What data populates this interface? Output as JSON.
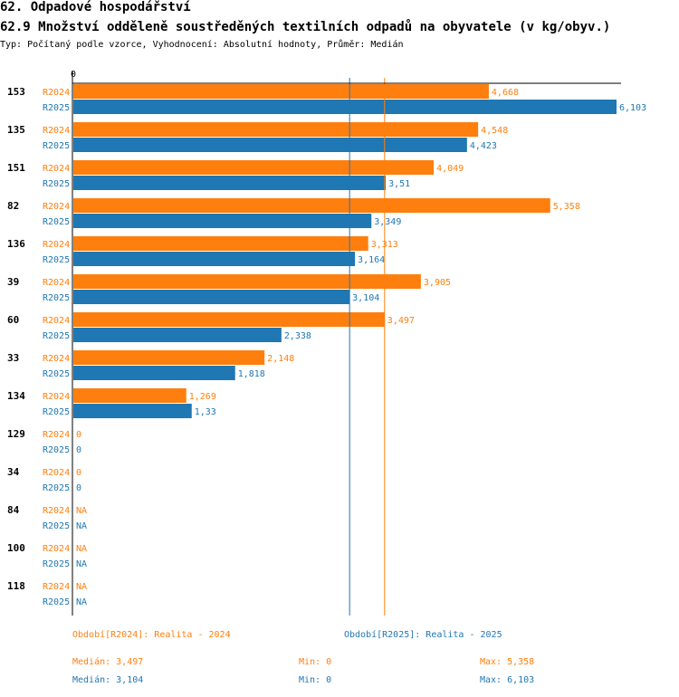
{
  "header": {
    "title": "62. Odpadové hospodářství",
    "subtitle": "62.9 Množství odděleně soustředěných textilních odpadů na obyvatele (v kg/obyv.)",
    "meta": "Typ: Počítaný podle vzorce, Vyhodnocení: Absolutní hodnoty, Průměr: Medián"
  },
  "colors": {
    "r2024": "#ff7f0e",
    "r2025": "#1f77b4",
    "axis": "#000000"
  },
  "chart_data": {
    "type": "bar",
    "orientation": "horizontal",
    "axis_zero_label": "0",
    "xlim": [
      0,
      6.103
    ],
    "categories": [
      "153",
      "135",
      "151",
      "82",
      "136",
      "39",
      "60",
      "33",
      "134",
      "129",
      "34",
      "84",
      "100",
      "118"
    ],
    "series": [
      {
        "name": "R2024",
        "values": [
          4.668,
          4.548,
          4.049,
          5.358,
          3.313,
          3.905,
          3.497,
          2.148,
          1.269,
          0,
          0,
          null,
          null,
          null
        ],
        "labels": [
          "4,668",
          "4,548",
          "4,049",
          "5,358",
          "3,313",
          "3,905",
          "3,497",
          "2,148",
          "1,269",
          "0",
          "0",
          "NA",
          "NA",
          "NA"
        ]
      },
      {
        "name": "R2025",
        "values": [
          6.103,
          4.423,
          3.51,
          3.349,
          3.164,
          3.104,
          2.338,
          1.818,
          1.33,
          0,
          0,
          null,
          null,
          null
        ],
        "labels": [
          "6,103",
          "4,423",
          "3,51",
          "3,349",
          "3,164",
          "3,104",
          "2,338",
          "1,818",
          "1,33",
          "0",
          "0",
          "NA",
          "NA",
          "NA"
        ]
      }
    ],
    "reference_lines": [
      {
        "name": "median-r2024",
        "series": "R2024",
        "value": 3.497
      },
      {
        "name": "median-r2025",
        "series": "R2025",
        "value": 3.104
      }
    ]
  },
  "legend": {
    "r2024": "Období[R2024]: Realita - 2024",
    "r2025": "Období[R2025]: Realita - 2025"
  },
  "stats": {
    "r2024": {
      "median": "Medián: 3,497",
      "min": "Min: 0",
      "max": "Max: 5,358"
    },
    "r2025": {
      "median": "Medián: 3,104",
      "min": "Min: 0",
      "max": "Max: 6,103"
    }
  }
}
